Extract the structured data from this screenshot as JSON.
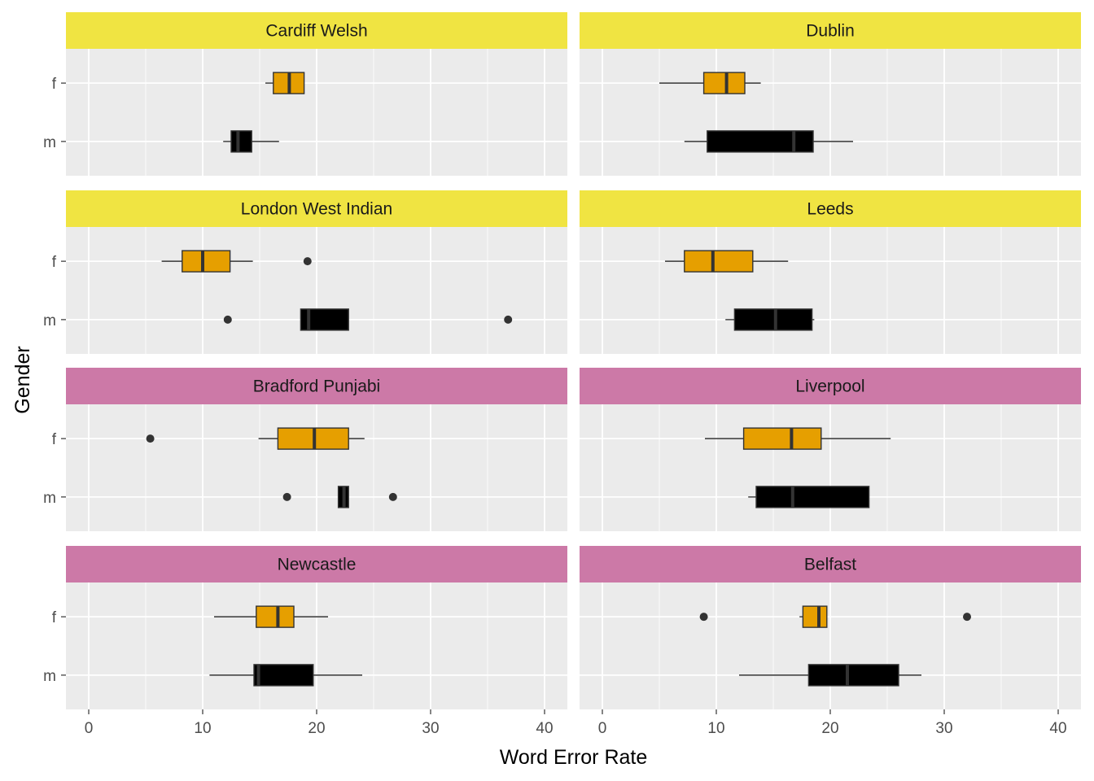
{
  "chart_data": {
    "type": "boxplot",
    "xlabel": "Word Error Rate",
    "ylabel": "Gender",
    "xlim": [
      -2,
      42
    ],
    "x_ticks": [
      0,
      10,
      20,
      30,
      40
    ],
    "categories": [
      "f",
      "m"
    ],
    "colors": {
      "f": "#E69F00",
      "m": "#000000"
    },
    "strip_colors": {
      "yellow": "#F0E442",
      "pink": "#CC79A7"
    },
    "grid": true,
    "layout": "4 rows x 2 columns facet grid",
    "panels": [
      {
        "title": "Cardiff Welsh",
        "strip": "yellow",
        "boxes": [
          {
            "gender": "f",
            "whisker_low": 15.5,
            "q1": 16.2,
            "median": 17.6,
            "q3": 18.9,
            "whisker_high": 18.9,
            "outliers": []
          },
          {
            "gender": "m",
            "whisker_low": 11.8,
            "q1": 12.5,
            "median": 13.1,
            "q3": 14.3,
            "whisker_high": 16.7,
            "outliers": []
          }
        ]
      },
      {
        "title": "Dublin",
        "strip": "yellow",
        "boxes": [
          {
            "gender": "f",
            "whisker_low": 5.0,
            "q1": 8.9,
            "median": 10.9,
            "q3": 12.5,
            "whisker_high": 13.9,
            "outliers": []
          },
          {
            "gender": "m",
            "whisker_low": 7.2,
            "q1": 9.2,
            "median": 16.8,
            "q3": 18.5,
            "whisker_high": 22.0,
            "outliers": []
          }
        ]
      },
      {
        "title": "London West Indian",
        "strip": "yellow",
        "boxes": [
          {
            "gender": "f",
            "whisker_low": 6.4,
            "q1": 8.2,
            "median": 10.0,
            "q3": 12.4,
            "whisker_high": 14.4,
            "outliers": [
              19.2
            ]
          },
          {
            "gender": "m",
            "whisker_low": 18.6,
            "q1": 18.6,
            "median": 19.3,
            "q3": 22.8,
            "whisker_high": 22.8,
            "outliers": [
              12.2,
              36.8
            ]
          }
        ]
      },
      {
        "title": "Leeds",
        "strip": "yellow",
        "boxes": [
          {
            "gender": "f",
            "whisker_low": 5.5,
            "q1": 7.2,
            "median": 9.7,
            "q3": 13.2,
            "whisker_high": 16.3,
            "outliers": []
          },
          {
            "gender": "m",
            "whisker_low": 10.8,
            "q1": 11.6,
            "median": 15.2,
            "q3": 18.4,
            "whisker_high": 18.6,
            "outliers": []
          }
        ]
      },
      {
        "title": "Bradford Punjabi",
        "strip": "pink",
        "boxes": [
          {
            "gender": "f",
            "whisker_low": 14.9,
            "q1": 16.6,
            "median": 19.8,
            "q3": 22.8,
            "whisker_high": 24.2,
            "outliers": [
              5.4
            ]
          },
          {
            "gender": "m",
            "whisker_low": 21.9,
            "q1": 21.9,
            "median": 22.4,
            "q3": 22.8,
            "whisker_high": 22.8,
            "outliers": [
              17.4,
              26.7
            ]
          }
        ]
      },
      {
        "title": "Liverpool",
        "strip": "pink",
        "boxes": [
          {
            "gender": "f",
            "whisker_low": 9.0,
            "q1": 12.4,
            "median": 16.6,
            "q3": 19.2,
            "whisker_high": 25.3,
            "outliers": []
          },
          {
            "gender": "m",
            "whisker_low": 12.8,
            "q1": 13.5,
            "median": 16.7,
            "q3": 23.4,
            "whisker_high": 23.4,
            "outliers": []
          }
        ]
      },
      {
        "title": "Newcastle",
        "strip": "pink",
        "boxes": [
          {
            "gender": "f",
            "whisker_low": 11.0,
            "q1": 14.7,
            "median": 16.6,
            "q3": 18.0,
            "whisker_high": 21.0,
            "outliers": []
          },
          {
            "gender": "m",
            "whisker_low": 10.6,
            "q1": 14.5,
            "median": 14.9,
            "q3": 19.7,
            "whisker_high": 24.0,
            "outliers": []
          }
        ]
      },
      {
        "title": "Belfast",
        "strip": "pink",
        "boxes": [
          {
            "gender": "f",
            "whisker_low": 17.3,
            "q1": 17.6,
            "median": 19.0,
            "q3": 19.7,
            "whisker_high": 19.7,
            "outliers": [
              8.9,
              32.0
            ]
          },
          {
            "gender": "m",
            "whisker_low": 12.0,
            "q1": 18.1,
            "median": 21.5,
            "q3": 26.0,
            "whisker_high": 28.0,
            "outliers": []
          }
        ]
      }
    ]
  }
}
